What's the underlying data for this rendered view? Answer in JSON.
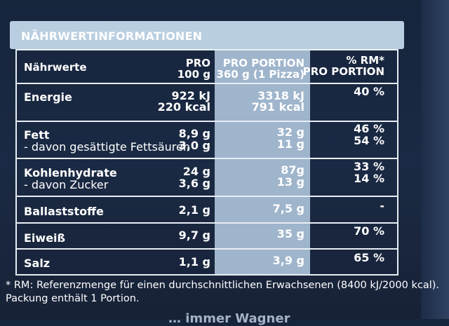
{
  "section_title": "NÄHRWERTINFORMATIONEN",
  "header": {
    "col1": "Nährwerte",
    "col2_line1": "PRO",
    "col2_line2": "100 g",
    "col3_line1": "PRO PORTION",
    "col3_line2": "360 g (1 Pizza)",
    "col4_line1": "% RM*",
    "col4_line2": "PRO PORTION"
  },
  "rows": [
    {
      "label": "Energie",
      "per100": "922 kJ",
      "per100_2": "220 kcal",
      "portion": "3318 kJ",
      "portion_2": "791 kcal",
      "rm": "40 %"
    },
    {
      "label": "Fett",
      "sub_label": "- davon gesättigte Fettsäuren",
      "per100": "8,9 g",
      "per100_2": "3,0 g",
      "portion": "32 g",
      "portion_2": "11 g",
      "rm": "46 %",
      "rm_2": "54 %"
    },
    {
      "label": "Kohlenhydrate",
      "sub_label": "- davon Zucker",
      "per100": "24 g",
      "per100_2": "3,6 g",
      "portion": "87g",
      "portion_2": "13 g",
      "rm": "33 %",
      "rm_2": "14 %"
    },
    {
      "label": "Ballaststoffe",
      "per100": "2,1 g",
      "portion": "7,5 g",
      "rm": "-"
    },
    {
      "label": "Eiweiß",
      "per100": "9,7 g",
      "portion": "35 g",
      "rm": "70 %"
    },
    {
      "label": "Salz",
      "per100": "1,1 g",
      "portion": "3,9 g",
      "rm": "65 %"
    }
  ],
  "footnote_line1": "* RM: Referenzmenge für einen durchschnittlichen Erwachsenen (8400 kJ/2000 kcal).",
  "footnote_line2": "Packung enthält 1 Portion.",
  "bottom_text": "… immer Wagner"
}
